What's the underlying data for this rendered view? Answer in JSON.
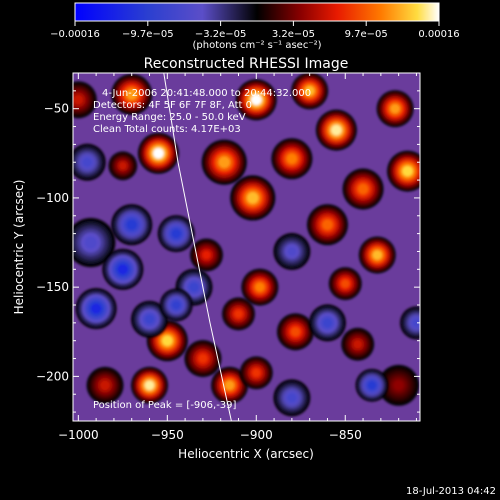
{
  "chart_data": {
    "type": "heatmap",
    "title": "Reconstructed RHESSI Image",
    "xlabel": "Heliocentric X (arcsec)",
    "ylabel": "Heliocentric Y (arcsec)",
    "xlim": [
      -1003,
      -808
    ],
    "ylim": [
      -225,
      -30
    ],
    "x_ticks": [
      -1000,
      -950,
      -900,
      -850
    ],
    "x_tick_labels": [
      "−1000",
      "−950",
      "−900",
      "−850"
    ],
    "y_ticks": [
      -50,
      -100,
      -150,
      -200
    ],
    "y_tick_labels": [
      "−50",
      "−100",
      "−150",
      "−200"
    ],
    "colorbar": {
      "range": [
        -0.00016,
        0.00016
      ],
      "tick_labels": [
        "−0.00016",
        "−9.7e−05",
        "−3.2e−05",
        "3.2e−05",
        "9.7e−05",
        "0.00016"
      ],
      "unit_label": "(photons cm⁻² s⁻¹ asec⁻²)"
    },
    "annotations": [
      "4-Jun-2006 20:41:48.000 to 20:44:32.000",
      "Detectors: 4F 5F 6F 7F 8F, Att 0",
      "Energy Range: 25.0 - 50.0 keV",
      "Clean   Total counts: 4.17E+03"
    ],
    "peak_label": "Position of Peak = [-906,-39]",
    "peak_position": [
      -906,
      -39
    ],
    "limb_curve": [
      [
        -952,
        -30
      ],
      [
        -944,
        -80
      ],
      [
        -936,
        -120
      ],
      [
        -926,
        -170
      ],
      [
        -914,
        -225
      ]
    ],
    "blobs": [
      {
        "x": -970,
        "y": -42,
        "v": 0.00012,
        "s": 10
      },
      {
        "x": -955,
        "y": -75,
        "v": 0.00016,
        "s": 10
      },
      {
        "x": -975,
        "y": -82,
        "v": 6e-05,
        "s": 7
      },
      {
        "x": -918,
        "y": -80,
        "v": 0.00012,
        "s": 11
      },
      {
        "x": -900,
        "y": -45,
        "v": 0.00016,
        "s": 10
      },
      {
        "x": -902,
        "y": -100,
        "v": 0.00013,
        "s": 11
      },
      {
        "x": -880,
        "y": -78,
        "v": 0.00011,
        "s": 10
      },
      {
        "x": -870,
        "y": -40,
        "v": 0.00013,
        "s": 9
      },
      {
        "x": -855,
        "y": -62,
        "v": 0.00015,
        "s": 10
      },
      {
        "x": -840,
        "y": -95,
        "v": 0.0001,
        "s": 10
      },
      {
        "x": -822,
        "y": -50,
        "v": 0.00012,
        "s": 9
      },
      {
        "x": -815,
        "y": -85,
        "v": 0.00014,
        "s": 10
      },
      {
        "x": -860,
        "y": -115,
        "v": 0.0001,
        "s": 10
      },
      {
        "x": -832,
        "y": -132,
        "v": 0.00013,
        "s": 9
      },
      {
        "x": -850,
        "y": -148,
        "v": 9e-05,
        "s": 8
      },
      {
        "x": -898,
        "y": -150,
        "v": 0.00011,
        "s": 9
      },
      {
        "x": -910,
        "y": -165,
        "v": 8e-05,
        "s": 8
      },
      {
        "x": -878,
        "y": -175,
        "v": 9e-05,
        "s": 9
      },
      {
        "x": -843,
        "y": -182,
        "v": 6e-05,
        "s": 8
      },
      {
        "x": -928,
        "y": -132,
        "v": 7e-05,
        "s": 8
      },
      {
        "x": -950,
        "y": -180,
        "v": 0.00014,
        "s": 10
      },
      {
        "x": -960,
        "y": -205,
        "v": 0.00015,
        "s": 9
      },
      {
        "x": -930,
        "y": -190,
        "v": 8e-05,
        "s": 9
      },
      {
        "x": -915,
        "y": -205,
        "v": 0.00012,
        "s": 9
      },
      {
        "x": -900,
        "y": -198,
        "v": 8e-05,
        "s": 8
      },
      {
        "x": -985,
        "y": -205,
        "v": 6e-05,
        "s": 9
      },
      {
        "x": -820,
        "y": -205,
        "v": 4e-05,
        "s": 10
      },
      {
        "x": -1000,
        "y": -45,
        "v": 6e-05,
        "s": 9
      },
      {
        "x": -993,
        "y": -125,
        "v": -6e-05,
        "s": 12
      },
      {
        "x": -970,
        "y": -115,
        "v": -0.0001,
        "s": 10
      },
      {
        "x": -975,
        "y": -140,
        "v": -0.00012,
        "s": 10
      },
      {
        "x": -945,
        "y": -120,
        "v": -0.0001,
        "s": 9
      },
      {
        "x": -935,
        "y": -150,
        "v": -8e-05,
        "s": 9
      },
      {
        "x": -990,
        "y": -162,
        "v": -0.00012,
        "s": 10
      },
      {
        "x": -960,
        "y": -168,
        "v": -8e-05,
        "s": 9
      },
      {
        "x": -945,
        "y": -160,
        "v": -9e-05,
        "s": 8
      },
      {
        "x": -880,
        "y": -130,
        "v": -6e-05,
        "s": 9
      },
      {
        "x": -860,
        "y": -170,
        "v": -8e-05,
        "s": 9
      },
      {
        "x": -835,
        "y": -205,
        "v": -0.0001,
        "s": 8
      },
      {
        "x": -880,
        "y": -212,
        "v": -7e-05,
        "s": 9
      },
      {
        "x": -995,
        "y": -80,
        "v": -7e-05,
        "s": 9
      },
      {
        "x": -810,
        "y": -170,
        "v": -7e-05,
        "s": 8
      }
    ]
  },
  "footer": {
    "timestamp": "18-Jul-2013 04:42"
  }
}
